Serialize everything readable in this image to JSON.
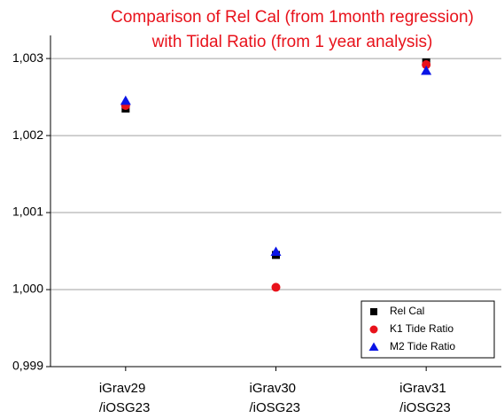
{
  "chart_data": {
    "type": "scatter",
    "title": [
      "Comparison of Rel Cal (from 1month regression)",
      "with Tidal Ratio (from 1 year analysis)"
    ],
    "title_color": "#e8121b",
    "categories": [
      "iGrav29\n/iOSG23",
      "iGrav30\n/iOSG23",
      "iGrav31\n/iOSG23"
    ],
    "series": [
      {
        "name": "Rel Cal",
        "color": "#000000",
        "marker": "square",
        "values": [
          1.00235,
          1.00045,
          1.00295
        ]
      },
      {
        "name": "K1 Tide Ratio",
        "color": "#e8121b",
        "marker": "circle",
        "values": [
          1.00239,
          1.00003,
          1.00292
        ]
      },
      {
        "name": "M2 Tide Ratio",
        "color": "#0a14e6",
        "marker": "triangle",
        "values": [
          1.00245,
          1.00049,
          1.00284
        ]
      }
    ],
    "ylim": [
      0.999,
      1.0033
    ],
    "yticks": [
      {
        "value": 0.999,
        "label": "0,999"
      },
      {
        "value": 1.0,
        "label": "1,000"
      },
      {
        "value": 1.001,
        "label": "1,001"
      },
      {
        "value": 1.002,
        "label": "1,002"
      },
      {
        "value": 1.003,
        "label": "1,003"
      }
    ],
    "grid": true,
    "legend": "lower right"
  }
}
